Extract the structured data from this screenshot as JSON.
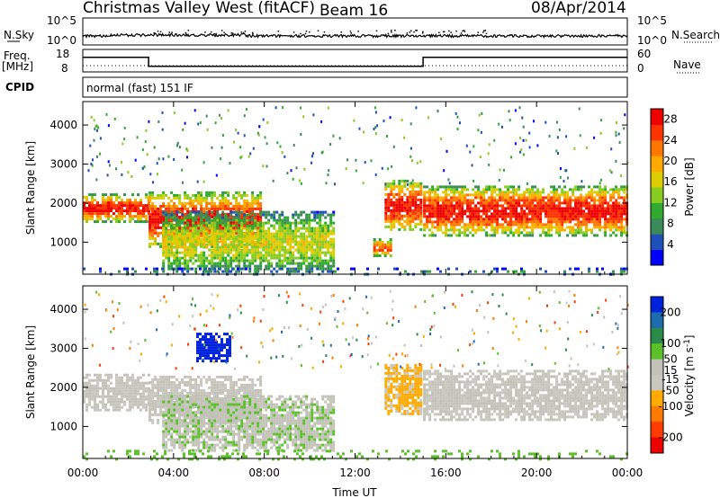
{
  "header": {
    "station": "Christmas Valley West (fitACF)",
    "beam": "Beam 16",
    "date": "08/Apr/2014"
  },
  "noise_panel": {
    "left_label": "N.Sky",
    "right_label": "N.Search",
    "left_ticks": [
      "10^5",
      "10^0"
    ],
    "right_ticks": [
      "10^5",
      "10^0"
    ]
  },
  "freq_panel": {
    "left_label_1": "Freq.",
    "left_label_2": "[MHz]",
    "right_label": "Nave",
    "left_ticks": [
      "18",
      "8"
    ],
    "right_ticks": [
      "60",
      "0"
    ]
  },
  "cpid": {
    "label": "CPID",
    "value": "normal (fast) 151 IF"
  },
  "colors": {
    "power_scale": [
      "#0000ff",
      "#1f4fb8",
      "#3b8a5a",
      "#2faa2f",
      "#88cc22",
      "#ddcc00",
      "#ffaa00",
      "#ff7700",
      "#ff3300",
      "#ee0000"
    ],
    "velocity_scale": [
      "#0022dd",
      "#1d6cb0",
      "#2a8a4a",
      "#5cc02a",
      "#c2c2b8",
      "#c8c8c0",
      "#ffaa00",
      "#ff7a00",
      "#ff3b00",
      "#ee0000"
    ],
    "axis": "#000000"
  },
  "chart_data": [
    {
      "type": "heatmap",
      "name": "power-panel",
      "xlabel": "",
      "ylabel": "Slant Range [km]",
      "x_ticks": [
        "00:00",
        "04:00",
        "08:00",
        "12:00",
        "16:00",
        "20:00",
        "00:00"
      ],
      "xlim_hours": [
        0,
        24
      ],
      "y_ticks": [
        1000,
        2000,
        3000,
        4000
      ],
      "ylim_km": [
        180,
        4600
      ],
      "colorbar": {
        "label": "Power [dB]",
        "ticks": [
          4,
          8,
          12,
          16,
          20,
          24,
          28
        ],
        "range": [
          0,
          30
        ]
      },
      "echo_regions": [
        {
          "start_h": 0.0,
          "end_h": 2.9,
          "range_km": [
            1550,
            2250
          ],
          "peak_db": 28
        },
        {
          "start_h": 2.9,
          "end_h": 7.8,
          "range_km": [
            900,
            2300
          ],
          "peak_db": 28
        },
        {
          "start_h": 3.5,
          "end_h": 11.0,
          "range_km": [
            250,
            1800
          ],
          "peak_db": 16
        },
        {
          "start_h": 13.3,
          "end_h": 14.9,
          "range_km": [
            1300,
            2600
          ],
          "peak_db": 28
        },
        {
          "start_h": 12.8,
          "end_h": 13.6,
          "range_km": [
            650,
            1100
          ],
          "peak_db": 24
        },
        {
          "start_h": 15.0,
          "end_h": 24.0,
          "range_km": [
            1200,
            2450
          ],
          "peak_db": 28
        },
        {
          "start_h": 0.0,
          "end_h": 24.0,
          "range_km": [
            180,
            350
          ],
          "peak_db": 8
        }
      ]
    },
    {
      "type": "heatmap",
      "name": "velocity-panel",
      "xlabel": "Time UT",
      "ylabel": "Slant Range [km]",
      "x_ticks": [
        "00:00",
        "04:00",
        "08:00",
        "12:00",
        "16:00",
        "20:00",
        "00:00"
      ],
      "xlim_hours": [
        0,
        24
      ],
      "y_ticks": [
        1000,
        2000,
        3000,
        4000
      ],
      "ylim_km": [
        180,
        4600
      ],
      "colorbar": {
        "label": "Velocity [m s",
        "label_sup": "-1",
        "label_end": "]",
        "ticks": [
          200,
          100,
          50,
          15,
          -15,
          -50,
          -100,
          -200
        ],
        "range": [
          -250,
          250
        ]
      },
      "echo_regions": [
        {
          "start_h": 0.0,
          "end_h": 2.9,
          "range_km": [
            1450,
            2350
          ],
          "velocity_ms": 0
        },
        {
          "start_h": 2.9,
          "end_h": 7.8,
          "range_km": [
            1100,
            2300
          ],
          "velocity_ms": 0
        },
        {
          "start_h": 3.5,
          "end_h": 11.0,
          "range_km": [
            350,
            1800
          ],
          "velocity_ms": -40
        },
        {
          "start_h": 5.0,
          "end_h": 6.5,
          "range_km": [
            2700,
            3400
          ],
          "velocity_ms": -220
        },
        {
          "start_h": 13.3,
          "end_h": 14.9,
          "range_km": [
            1300,
            2600
          ],
          "velocity_ms": 60
        },
        {
          "start_h": 15.0,
          "end_h": 24.0,
          "range_km": [
            1200,
            2450
          ],
          "velocity_ms": 0
        },
        {
          "start_h": 0.0,
          "end_h": 24.0,
          "range_km": [
            180,
            400
          ],
          "velocity_ms": -80
        }
      ]
    }
  ],
  "frequency_series": {
    "hours": [
      0,
      2.9,
      2.9,
      15.0,
      15.0,
      24
    ],
    "mhz": [
      14.5,
      14.5,
      10.5,
      10.5,
      14.5,
      14.5
    ]
  }
}
